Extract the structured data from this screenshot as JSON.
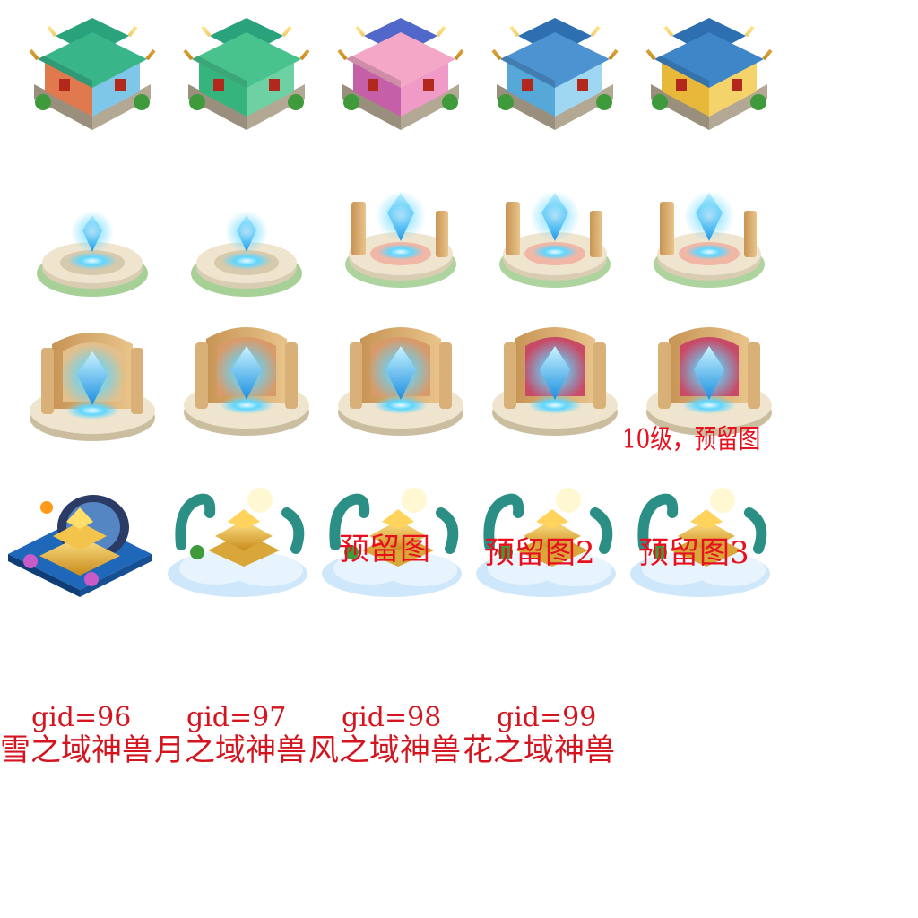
{
  "rows": {
    "houses": [
      "house-rainbow",
      "house-leaf",
      "house-blossom",
      "house-snowflake",
      "house-moon"
    ],
    "altars_small": [
      "altar-lv1",
      "altar-lv2",
      "altar-lv3",
      "altar-lv4",
      "altar-lv5"
    ],
    "altars_large": [
      "altar-lv6",
      "altar-lv7",
      "altar-lv8",
      "altar-lv9",
      "altar-lv10"
    ],
    "palaces": [
      "palace-gold",
      "palace-dragon-1",
      "palace-dragon-2",
      "palace-dragon-3",
      "palace-dragon-4"
    ]
  },
  "notes": {
    "level10": "10级，预留图",
    "reserve1": "预留图",
    "reserve2": "预留图2",
    "reserve3": "预留图3"
  },
  "gids": [
    "gid=96",
    "gid=97",
    "gid=98",
    "gid=99"
  ],
  "beasts": [
    "雪之域神兽",
    "月之域神兽",
    "风之域神兽",
    "花之域神兽"
  ],
  "colors": {
    "label_red": "#d4141e",
    "crystal_blue": "#3fc8ff",
    "gold": "#e8b43a",
    "stone": "#e9dcc2"
  }
}
